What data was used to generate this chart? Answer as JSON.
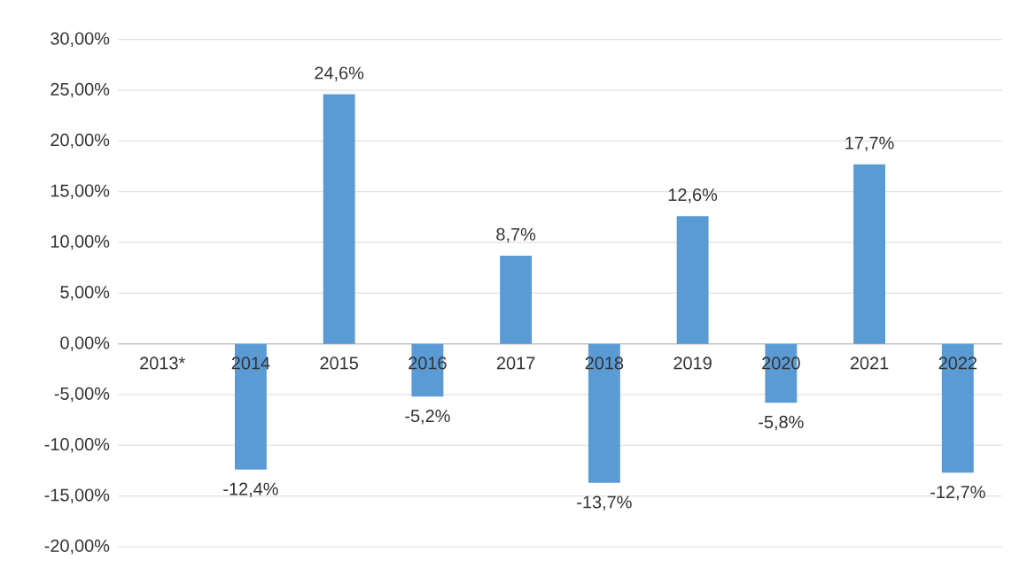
{
  "chart_data": {
    "type": "bar",
    "categories": [
      "2013*",
      "2014",
      "2015",
      "2016",
      "2017",
      "2018",
      "2019",
      "2020",
      "2021",
      "2022"
    ],
    "values": [
      null,
      -12.4,
      24.6,
      -5.2,
      8.7,
      -13.7,
      12.6,
      -5.8,
      17.7,
      -12.7
    ],
    "value_labels": [
      null,
      "-12,4%",
      "24,6%",
      "-5,2%",
      "8,7%",
      "-13,7%",
      "12,6%",
      "-5,8%",
      "17,7%",
      "-12,7%"
    ],
    "color": "#5b9bd5",
    "ylim": [
      -20,
      30
    ],
    "yticks": [
      {
        "value": -20,
        "label": "-20,00%"
      },
      {
        "value": -15,
        "label": "-15,00%"
      },
      {
        "value": -10,
        "label": "-10,00%"
      },
      {
        "value": -5,
        "label": "-5,00%"
      },
      {
        "value": 0,
        "label": "0,00%"
      },
      {
        "value": 5,
        "label": "5,00%"
      },
      {
        "value": 10,
        "label": "10,00%"
      },
      {
        "value": 15,
        "label": "15,00%"
      },
      {
        "value": 20,
        "label": "20,00%"
      },
      {
        "value": 25,
        "label": "25,00%"
      },
      {
        "value": 30,
        "label": "30,00%"
      }
    ],
    "grid": "y"
  }
}
